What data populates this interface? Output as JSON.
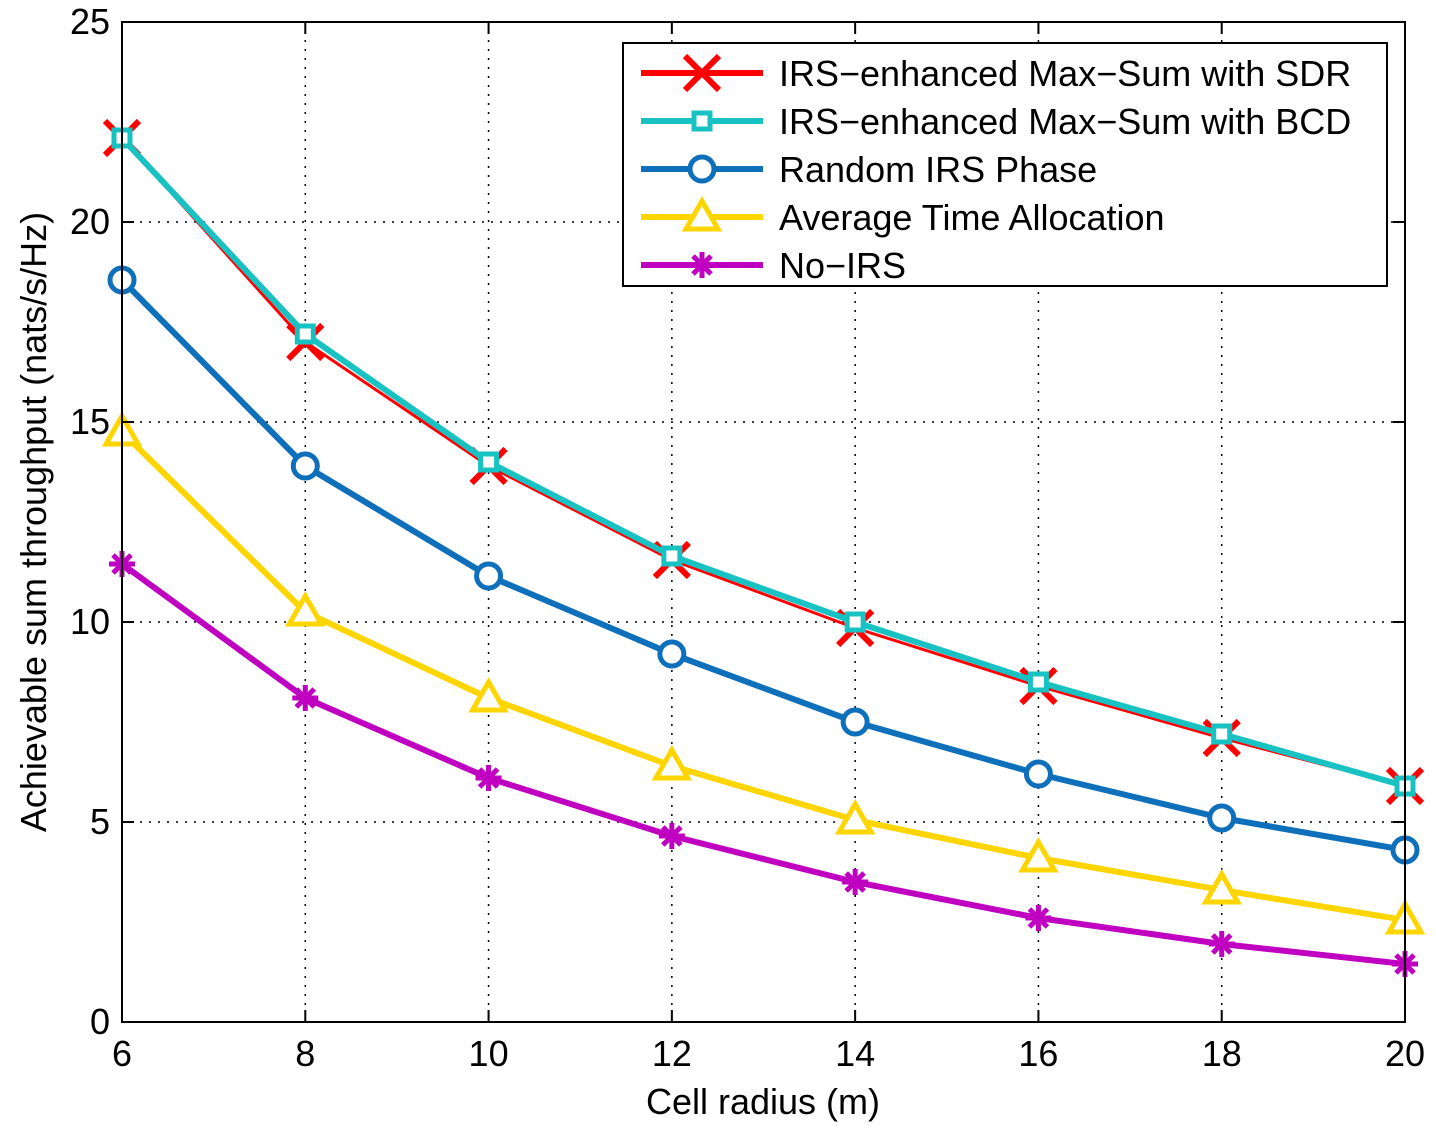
{
  "chart_data": {
    "type": "line",
    "title": "",
    "xlabel": "Cell radius (m)",
    "ylabel": "Achievable sum throughput (nats/s/Hz)",
    "xlim": [
      6,
      20
    ],
    "ylim": [
      0,
      25
    ],
    "xticks": [
      6,
      8,
      10,
      12,
      14,
      16,
      18,
      20
    ],
    "yticks": [
      0,
      5,
      10,
      15,
      20,
      25
    ],
    "grid": true,
    "legend_position": "top-right",
    "x": [
      6,
      8,
      10,
      12,
      14,
      16,
      18,
      20
    ],
    "series": [
      {
        "name": "IRS−enhanced Max−Sum with SDR",
        "color": "#ff0000",
        "marker": "x",
        "values": [
          22.1,
          17.0,
          13.9,
          11.55,
          9.85,
          8.4,
          7.1,
          5.9
        ]
      },
      {
        "name": "IRS−enhanced Max−Sum with BCD",
        "color": "#19c2c2",
        "marker": "square",
        "values": [
          22.1,
          17.2,
          14.0,
          11.65,
          10.0,
          8.5,
          7.2,
          5.9
        ]
      },
      {
        "name": "Random IRS Phase",
        "color": "#0e6fba",
        "marker": "circle",
        "values": [
          18.55,
          13.9,
          11.15,
          9.2,
          7.5,
          6.2,
          5.1,
          4.3
        ]
      },
      {
        "name": "Average Time Allocation",
        "color": "#ffd500",
        "marker": "triangle",
        "values": [
          14.75,
          10.25,
          8.1,
          6.4,
          5.05,
          4.1,
          3.3,
          2.55
        ]
      },
      {
        "name": "No−IRS",
        "color": "#c000c0",
        "marker": "asterisk",
        "values": [
          11.45,
          8.1,
          6.1,
          4.65,
          3.5,
          2.6,
          1.95,
          1.45
        ]
      }
    ]
  }
}
